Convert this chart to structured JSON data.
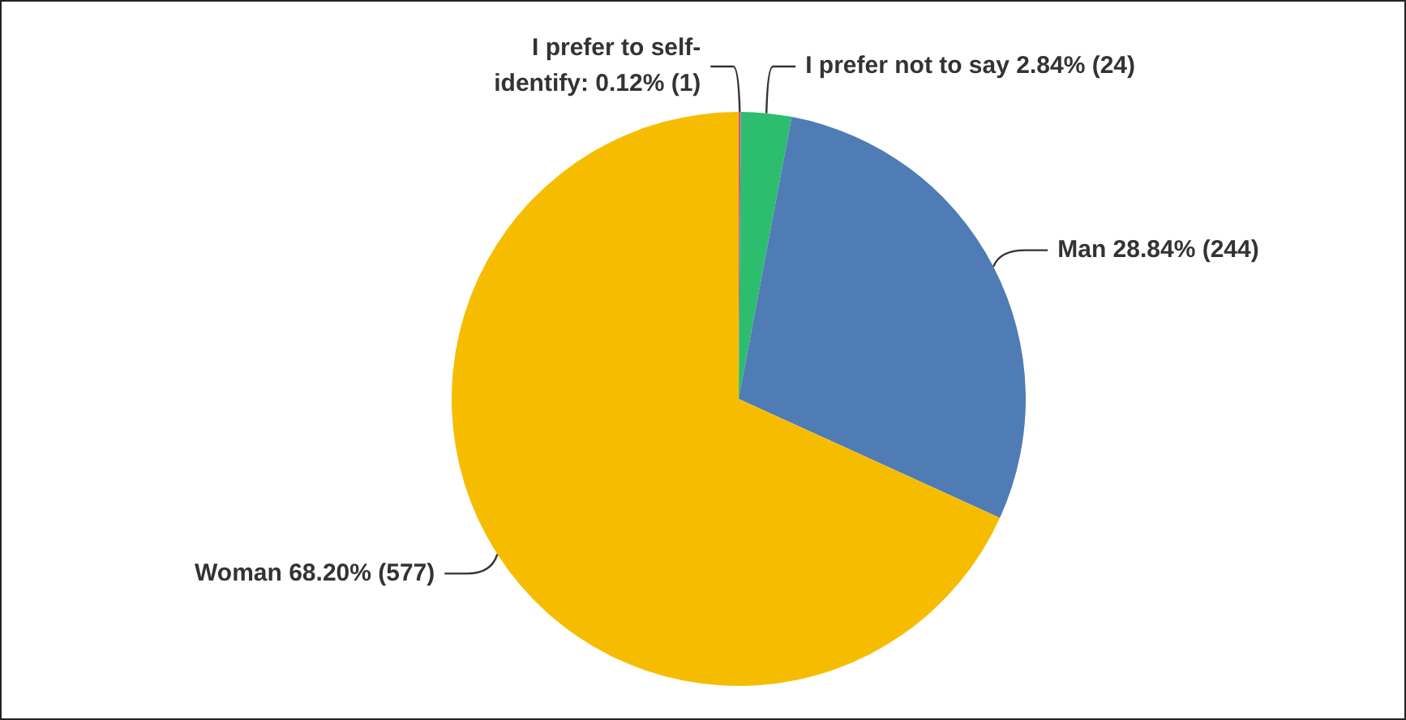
{
  "chart_data": {
    "type": "pie",
    "categories": [
      "I prefer to self-identify",
      "I prefer not to say",
      "Man",
      "Woman"
    ],
    "values": [
      0.12,
      2.84,
      28.84,
      68.2
    ],
    "value_labels": [
      "0.12% (1)",
      "2.84% (24)",
      "28.84% (244)",
      "68.20% (577)"
    ],
    "colors": [
      "#d4548f",
      "#2dbd6e",
      "#507cb6",
      "#f6bd00"
    ],
    "legend": false
  }
}
